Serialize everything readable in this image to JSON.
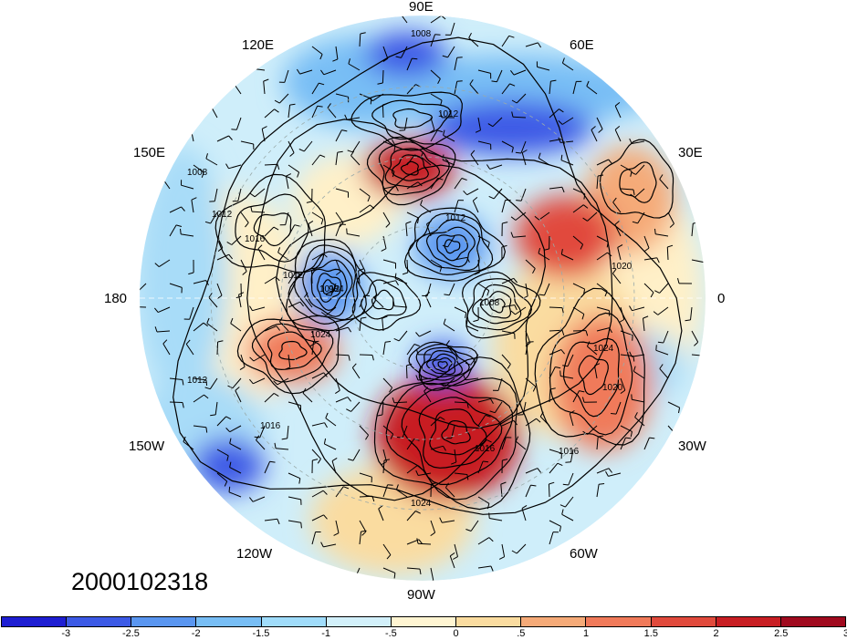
{
  "map": {
    "projection": "polar-stereographic-north",
    "date_label": "2000102318",
    "longitude_labels": [
      {
        "key": "90e",
        "text": "90E"
      },
      {
        "key": "60e",
        "text": "60E"
      },
      {
        "key": "120e",
        "text": "120E"
      },
      {
        "key": "30e",
        "text": "30E"
      },
      {
        "key": "150e",
        "text": "150E"
      },
      {
        "key": "180",
        "text": "180"
      },
      {
        "key": "0",
        "text": "0"
      },
      {
        "key": "150w",
        "text": "150W"
      },
      {
        "key": "30w",
        "text": "30W"
      },
      {
        "key": "120w",
        "text": "120W"
      },
      {
        "key": "60w",
        "text": "60W"
      },
      {
        "key": "90w",
        "text": "90W"
      }
    ],
    "contour_labels": [
      "1008",
      "1012",
      "1008",
      "1012",
      "1012",
      "1016",
      "1012",
      "1012",
      "984",
      "1008",
      "1024",
      "1024",
      "1012",
      "1016",
      "1020",
      "1016",
      "1016",
      "1024",
      "1020"
    ],
    "high_anomalies": [
      {
        "name": "siberia-north",
        "value": 2.5
      },
      {
        "name": "europe",
        "value": 2
      },
      {
        "name": "pacific",
        "value": 1.5
      },
      {
        "name": "north-america",
        "value": 2.5
      },
      {
        "name": "atlantic",
        "value": 1.5
      }
    ],
    "low_anomalies": [
      {
        "name": "central-asia",
        "value": -2.5
      },
      {
        "name": "tibet",
        "value": -2.5
      },
      {
        "name": "siberia-east",
        "value": -2
      },
      {
        "name": "arctic",
        "value": -2
      },
      {
        "name": "greenland",
        "value": -2.5
      },
      {
        "name": "north-pacific",
        "value": -2.5
      }
    ]
  },
  "colorbar": {
    "colors": [
      "#1e1ed2",
      "#3c5ae6",
      "#5a96f0",
      "#78bef5",
      "#a0dcfa",
      "#d2f0fa",
      "#fff5d2",
      "#fadca0",
      "#f5aa78",
      "#f07a5a",
      "#e14a3c",
      "#c81e23",
      "#a00a1e"
    ],
    "tick_labels": [
      "-3",
      "-2.5",
      "-2",
      "-1.5",
      "-1",
      "-.5",
      "0",
      ".5",
      "1",
      "1.5",
      "2",
      "2.5",
      "3"
    ]
  }
}
